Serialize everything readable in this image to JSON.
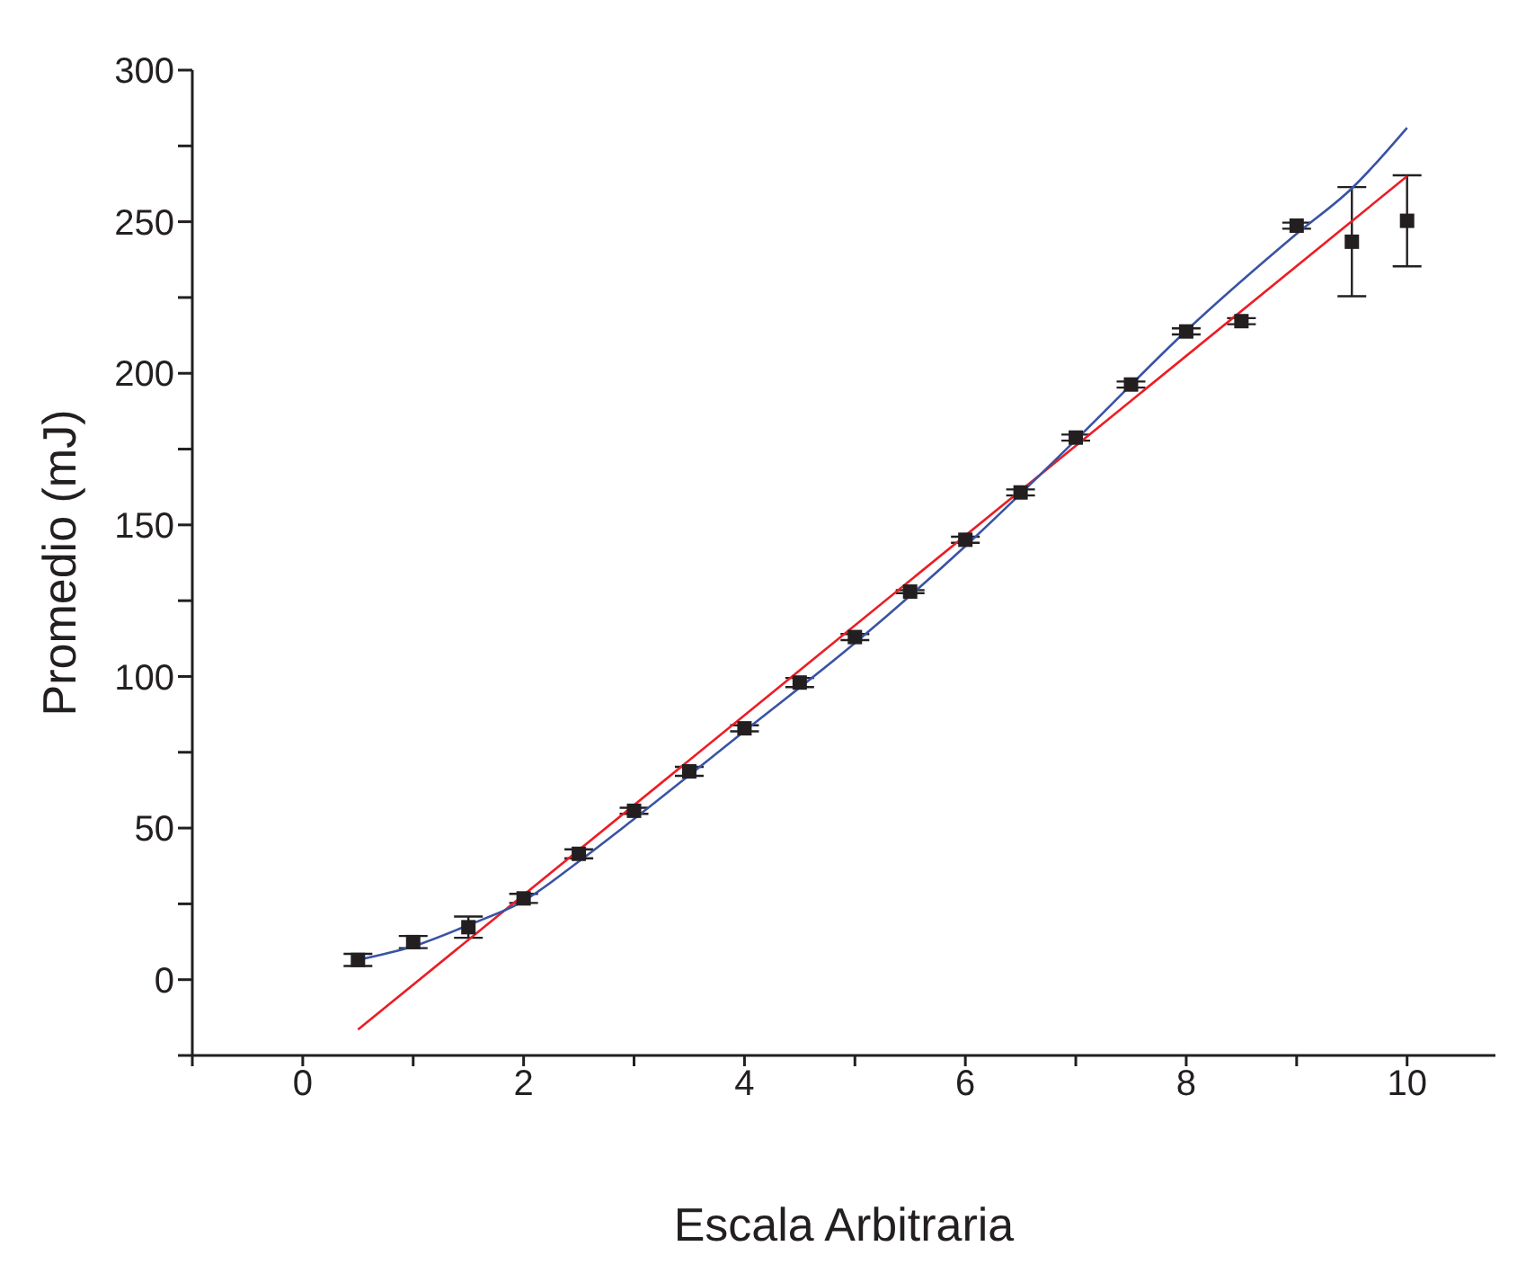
{
  "chart_data": {
    "type": "scatter",
    "xlabel": "Escala Arbitraria",
    "ylabel": "Promedio (mJ)",
    "x": [
      0.5,
      1,
      1.5,
      2,
      2.5,
      3,
      3.5,
      4,
      4.5,
      5,
      5.5,
      6,
      6.5,
      7,
      7.5,
      8,
      8.5,
      9,
      9.5,
      10
    ],
    "series": [
      {
        "color": "#231f20",
        "marker": "square",
        "values": [
          6.5,
          12.4,
          17.3,
          26.8,
          41.5,
          55.7,
          68.7,
          82.9,
          98,
          113,
          128,
          145.1,
          160.7,
          178.8,
          196.3,
          213.8,
          217.2,
          248.7,
          243.4,
          250.3
        ],
        "errors": [
          2,
          2,
          3.5,
          1.5,
          1.5,
          1,
          1.5,
          1,
          1.5,
          1,
          0.5,
          1,
          1,
          1,
          1,
          1,
          1,
          1,
          18,
          15
        ]
      },
      {
        "type": "line",
        "color": "#ed1c24",
        "x": [
          0.5,
          10
        ],
        "values": [
          -16.5,
          265
        ]
      },
      {
        "type": "line",
        "color": "#3953a4",
        "x": [
          0.5,
          1,
          1.5,
          2,
          2.5,
          3,
          4,
          5,
          6,
          7,
          8,
          9,
          9.5,
          10
        ],
        "values": [
          6.5,
          11,
          18,
          26,
          39,
          53,
          82,
          111,
          143,
          178,
          214,
          246,
          261,
          281
        ]
      }
    ],
    "xlim": [
      -1,
      10.8
    ],
    "xticks": [
      {
        "value": -1,
        "label": null
      },
      0,
      {
        "value": 1,
        "label": null
      },
      2,
      {
        "value": 3,
        "label": null
      },
      4,
      {
        "value": 5,
        "label": null
      },
      6,
      {
        "value": 7,
        "label": null
      },
      8,
      {
        "value": 9,
        "label": null
      },
      10
    ],
    "ylim": [
      -25,
      300
    ],
    "yticks": [
      {
        "value": -25,
        "label": null
      },
      0,
      {
        "value": 25,
        "label": null
      },
      50,
      {
        "value": 75,
        "label": null
      },
      100,
      {
        "value": 125,
        "label": null
      },
      150,
      {
        "value": 175,
        "label": null
      },
      200,
      {
        "value": 225,
        "label": null
      },
      250,
      {
        "value": 275,
        "label": null
      },
      300
    ],
    "grid": false
  }
}
